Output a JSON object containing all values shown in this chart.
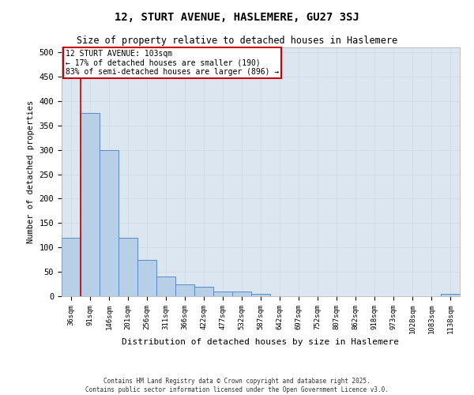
{
  "title": "12, STURT AVENUE, HASLEMERE, GU27 3SJ",
  "subtitle": "Size of property relative to detached houses in Haslemere",
  "xlabel": "Distribution of detached houses by size in Haslemere",
  "ylabel": "Number of detached properties",
  "bin_labels": [
    "36sqm",
    "91sqm",
    "146sqm",
    "201sqm",
    "256sqm",
    "311sqm",
    "366sqm",
    "422sqm",
    "477sqm",
    "532sqm",
    "587sqm",
    "642sqm",
    "697sqm",
    "752sqm",
    "807sqm",
    "862sqm",
    "918sqm",
    "973sqm",
    "1028sqm",
    "1083sqm",
    "1138sqm"
  ],
  "bar_heights": [
    120,
    375,
    300,
    120,
    75,
    40,
    25,
    20,
    10,
    10,
    5,
    0,
    0,
    0,
    0,
    0,
    0,
    0,
    0,
    0,
    5
  ],
  "bar_color": "#b8cfe8",
  "bar_edge_color": "#5b8bc4",
  "red_line_color": "#cc0000",
  "annotation_box_color": "#ffffff",
  "annotation_box_edge_color": "#cc0000",
  "property_line_label": "12 STURT AVENUE: 103sqm",
  "annotation_line1": "← 17% of detached houses are smaller (190)",
  "annotation_line2": "83% of semi-detached houses are larger (896) →",
  "ylim": [
    0,
    510
  ],
  "yticks": [
    0,
    50,
    100,
    150,
    200,
    250,
    300,
    350,
    400,
    450,
    500
  ],
  "grid_color": "#d0d8e4",
  "bg_color": "#dce6f0",
  "fig_bg_color": "#ffffff",
  "footer_line1": "Contains HM Land Registry data © Crown copyright and database right 2025.",
  "footer_line2": "Contains public sector information licensed under the Open Government Licence v3.0."
}
